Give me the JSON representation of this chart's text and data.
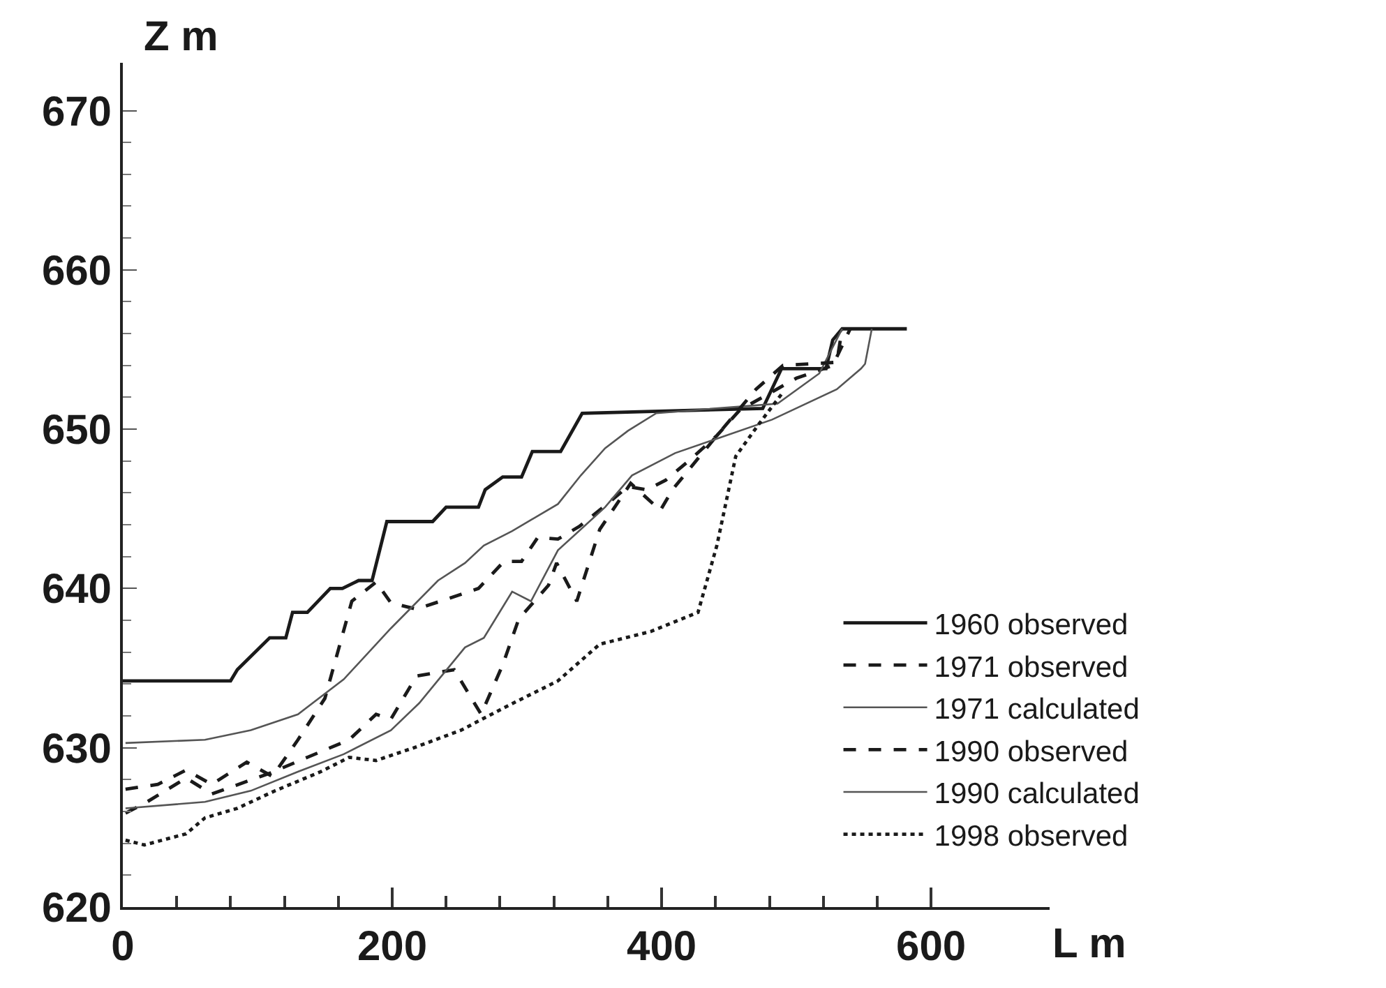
{
  "chart_data": {
    "type": "line",
    "xlabel": "L m",
    "ylabel": "Z m",
    "xlim": [
      0,
      688
    ],
    "ylim": [
      620,
      673
    ],
    "xticks": [
      0,
      {
        "value": 40,
        "label": null
      },
      {
        "value": 80,
        "label": null
      },
      {
        "value": 120,
        "label": null
      },
      {
        "value": 160,
        "label": null
      },
      200,
      {
        "value": 240,
        "label": null
      },
      {
        "value": 280,
        "label": null
      },
      {
        "value": 320,
        "label": null
      },
      {
        "value": 360,
        "label": null
      },
      400,
      {
        "value": 440,
        "label": null
      },
      {
        "value": 480,
        "label": null
      },
      {
        "value": 520,
        "label": null
      },
      {
        "value": 560,
        "label": null
      },
      600
    ],
    "yticks": [
      620,
      {
        "value": 622,
        "label": null
      },
      {
        "value": 624,
        "label": null
      },
      {
        "value": 626,
        "label": null
      },
      {
        "value": 628,
        "label": null
      },
      630,
      {
        "value": 632,
        "label": null
      },
      {
        "value": 634,
        "label": null
      },
      {
        "value": 636,
        "label": null
      },
      {
        "value": 638,
        "label": null
      },
      640,
      {
        "value": 642,
        "label": null
      },
      {
        "value": 644,
        "label": null
      },
      {
        "value": 646,
        "label": null
      },
      {
        "value": 648,
        "label": null
      },
      650,
      {
        "value": 652,
        "label": null
      },
      {
        "value": 654,
        "label": null
      },
      {
        "value": 656,
        "label": null
      },
      {
        "value": 658,
        "label": null
      },
      660,
      {
        "value": 662,
        "label": null
      },
      {
        "value": 664,
        "label": null
      },
      {
        "value": 666,
        "label": null
      },
      {
        "value": 668,
        "label": null
      },
      670
    ],
    "legend": "bottom right",
    "series": [
      {
        "name": "1960 observed",
        "color": "#1a1a1a",
        "line_style": "solid",
        "x": [
          0,
          80,
          85,
          109,
          121,
          126,
          137,
          154,
          163,
          175,
          185,
          196,
          230,
          240,
          264,
          269,
          282,
          296,
          304,
          325,
          341,
          475,
          489,
          522,
          527,
          534,
          582
        ],
        "values": [
          634.2,
          634.2,
          634.9,
          636.9,
          636.9,
          638.5,
          638.5,
          640.0,
          640.0,
          640.5,
          640.5,
          644.2,
          644.2,
          645.1,
          645.1,
          646.2,
          647.0,
          647.0,
          648.6,
          648.6,
          651.0,
          651.3,
          653.8,
          653.8,
          655.6,
          656.3,
          656.3
        ]
      },
      {
        "name": "1971 observed",
        "color": "#1a1a1a",
        "line_style": "dashed",
        "x": [
          2,
          26,
          47,
          66,
          92,
          111,
          130,
          150,
          170,
          188,
          199,
          218,
          264,
          283,
          296,
          308,
          323,
          339,
          358,
          375,
          389,
          403,
          420,
          441,
          458,
          500,
          527,
          540
        ],
        "values": [
          627.4,
          627.7,
          628.6,
          627.7,
          629.1,
          628.2,
          630.5,
          633.1,
          639.2,
          640.4,
          639.1,
          638.7,
          640.0,
          641.7,
          641.7,
          643.2,
          643.1,
          643.9,
          645.2,
          646.4,
          646.2,
          646.8,
          648.0,
          649.6,
          651.2,
          653.2,
          654.0,
          656.3
        ]
      },
      {
        "name": "1971 calculated",
        "color": "#555555",
        "line_style": "solid",
        "x": [
          2,
          61,
          95,
          130,
          164,
          199,
          234,
          254,
          268,
          289,
          303,
          323,
          340,
          358,
          375,
          396,
          440,
          486,
          517,
          534
        ],
        "values": [
          630.3,
          630.5,
          631.1,
          632.1,
          634.3,
          637.5,
          640.5,
          641.6,
          642.7,
          643.6,
          644.3,
          645.3,
          647.1,
          648.8,
          649.9,
          651.0,
          651.3,
          651.6,
          653.5,
          656.3
        ]
      },
      {
        "name": "1990 observed",
        "color": "#1a1a1a",
        "line_style": "dashed",
        "x": [
          2,
          16,
          47,
          66,
          109,
          137,
          168,
          188,
          199,
          218,
          246,
          266,
          282,
          294,
          316,
          322,
          337,
          354,
          377,
          399,
          408,
          441,
          470,
          490,
          530,
          534
        ],
        "values": [
          625.9,
          626.5,
          628.1,
          627.1,
          628.4,
          629.4,
          630.5,
          632.1,
          631.8,
          634.5,
          634.9,
          632.1,
          635.2,
          638.1,
          640.2,
          641.6,
          639.2,
          643.7,
          646.6,
          644.9,
          646.2,
          649.6,
          652.5,
          654.0,
          654.2,
          656.3
        ]
      },
      {
        "name": "1990 calculated",
        "color": "#555555",
        "line_style": "solid",
        "x": [
          2,
          61,
          95,
          130,
          164,
          199,
          220,
          254,
          268,
          289,
          303,
          323,
          358,
          378,
          410,
          441,
          482,
          530,
          548,
          551,
          556
        ],
        "values": [
          626.2,
          626.6,
          627.3,
          628.5,
          629.6,
          631.1,
          632.8,
          636.3,
          636.9,
          639.8,
          639.2,
          642.4,
          645.1,
          647.1,
          648.5,
          649.4,
          650.6,
          652.5,
          653.8,
          654.1,
          656.3
        ]
      },
      {
        "name": "1998 observed",
        "color": "#1a1a1a",
        "line_style": "dotted",
        "x": [
          2,
          16,
          47,
          61,
          85,
          113,
          147,
          168,
          188,
          216,
          251,
          285,
          323,
          354,
          392,
          427,
          441,
          455,
          472,
          489
        ],
        "values": [
          624.2,
          623.9,
          624.6,
          625.6,
          626.2,
          627.3,
          628.5,
          629.4,
          629.2,
          630.0,
          631.1,
          632.6,
          634.2,
          636.5,
          637.3,
          638.5,
          642.7,
          648.3,
          650.3,
          652.2
        ]
      }
    ]
  }
}
